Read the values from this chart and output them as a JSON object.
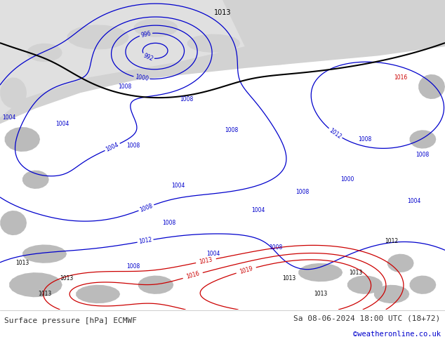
{
  "title_left": "Surface pressure [hPa] ECMWF",
  "title_right": "Sa 08-06-2024 18:00 UTC (18+72)",
  "title_right2": "©weatheronline.co.uk",
  "land_color": "#c8f0a0",
  "gray_color": "#d2d2d2",
  "gray_color2": "#e0e0e0",
  "blue_color": "#0000cc",
  "black_color": "#000000",
  "red_color": "#cc0000",
  "footer_text_color": "#333333",
  "link_color": "#0000cc",
  "fig_width": 6.34,
  "fig_height": 4.9,
  "dpi": 100
}
